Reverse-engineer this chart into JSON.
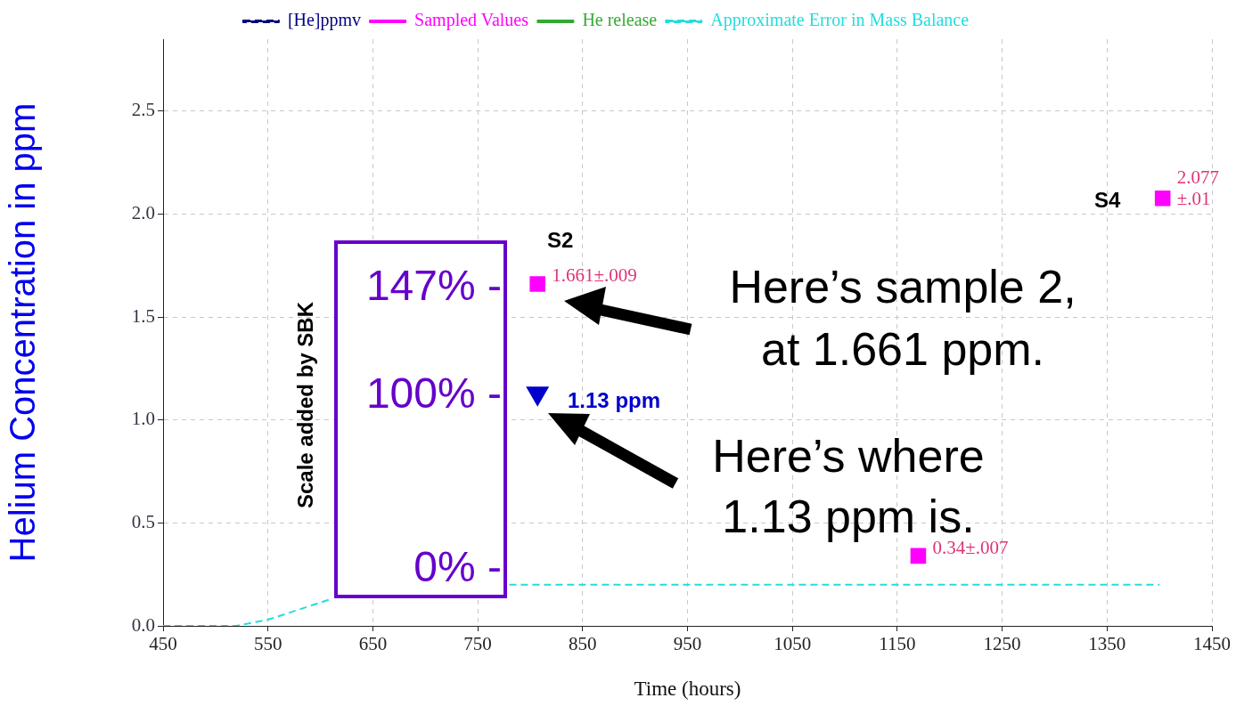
{
  "chart_data": {
    "type": "line",
    "xlabel": "Time (hours)",
    "ylabel": "Helium Concentration in ppm",
    "xlim": [
      450,
      1450
    ],
    "xticks": [
      450,
      550,
      650,
      750,
      850,
      950,
      1050,
      1150,
      1250,
      1350,
      1450
    ],
    "ylim": [
      0,
      2.85
    ],
    "yticks": [
      {
        "value": 0,
        "label": "0.0"
      },
      0.5,
      {
        "value": 1,
        "label": "1.0"
      },
      1.5,
      {
        "value": 2,
        "label": "2.0"
      },
      2.5
    ],
    "grid": true,
    "legend": "top",
    "series": [
      {
        "name": "[He]ppmv",
        "color": "#000080",
        "line_style": "dashed",
        "marker": "none"
      },
      {
        "name": "Sampled Values",
        "type": "scatter",
        "color": "#ff00ff",
        "marker": "square",
        "x": [
          807,
          1170,
          1403
        ],
        "values": [
          1.661,
          0.34,
          2.077
        ],
        "value_labels": [
          "1.661±.009",
          "0.34±.007",
          "2.077\n±.01"
        ]
      },
      {
        "name": "He release",
        "color": "#33aa33",
        "marker": "triangle"
      },
      {
        "name": "Approximate Error in Mass Balance",
        "color": "#22dddd",
        "line_style": "dashed",
        "marker": "none",
        "x": [
          450,
          520,
          550,
          610,
          700,
          780,
          1400
        ],
        "values": [
          0,
          0,
          0.03,
          0.13,
          null,
          0.2,
          0.2
        ]
      },
      {
        "type": "scatter",
        "color": "#0000cc",
        "marker": "triangle",
        "x": [
          807
        ],
        "values": [
          1.13
        ]
      }
    ],
    "annotations": [
      "S2",
      "S4",
      "1.13 ppm",
      "Here’s sample 2,\nat 1.661 ppm.",
      "Here’s where\n1.13 ppm is.",
      "Scale added by SBK",
      "147% -",
      "100% -",
      "0% -"
    ]
  }
}
